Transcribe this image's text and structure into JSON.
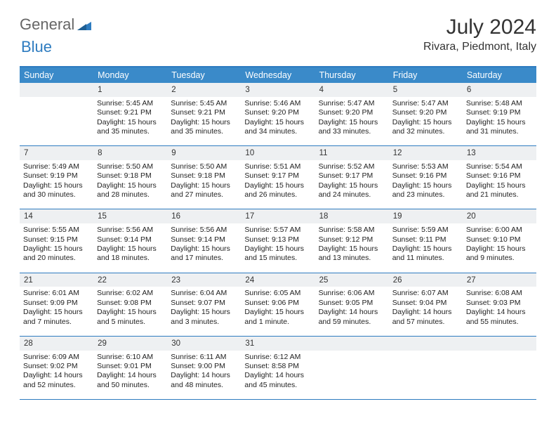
{
  "brand": {
    "part1": "General",
    "part2": "Blue",
    "logo_color": "#2e7cc0",
    "text_gray": "#666666"
  },
  "title": "July 2024",
  "location": "Rivara, Piedmont, Italy",
  "colors": {
    "header_bg": "#3a8ac9",
    "rule": "#2e7cc0",
    "daynum_bg": "#eef0f2"
  },
  "weekday_labels": [
    "Sunday",
    "Monday",
    "Tuesday",
    "Wednesday",
    "Thursday",
    "Friday",
    "Saturday"
  ],
  "weeks": [
    {
      "nums": [
        "",
        "1",
        "2",
        "3",
        "4",
        "5",
        "6"
      ],
      "cells": [
        null,
        {
          "sr": "5:45 AM",
          "ss": "9:21 PM",
          "dl": "15 hours and 35 minutes."
        },
        {
          "sr": "5:45 AM",
          "ss": "9:21 PM",
          "dl": "15 hours and 35 minutes."
        },
        {
          "sr": "5:46 AM",
          "ss": "9:20 PM",
          "dl": "15 hours and 34 minutes."
        },
        {
          "sr": "5:47 AM",
          "ss": "9:20 PM",
          "dl": "15 hours and 33 minutes."
        },
        {
          "sr": "5:47 AM",
          "ss": "9:20 PM",
          "dl": "15 hours and 32 minutes."
        },
        {
          "sr": "5:48 AM",
          "ss": "9:19 PM",
          "dl": "15 hours and 31 minutes."
        }
      ]
    },
    {
      "nums": [
        "7",
        "8",
        "9",
        "10",
        "11",
        "12",
        "13"
      ],
      "cells": [
        {
          "sr": "5:49 AM",
          "ss": "9:19 PM",
          "dl": "15 hours and 30 minutes."
        },
        {
          "sr": "5:50 AM",
          "ss": "9:18 PM",
          "dl": "15 hours and 28 minutes."
        },
        {
          "sr": "5:50 AM",
          "ss": "9:18 PM",
          "dl": "15 hours and 27 minutes."
        },
        {
          "sr": "5:51 AM",
          "ss": "9:17 PM",
          "dl": "15 hours and 26 minutes."
        },
        {
          "sr": "5:52 AM",
          "ss": "9:17 PM",
          "dl": "15 hours and 24 minutes."
        },
        {
          "sr": "5:53 AM",
          "ss": "9:16 PM",
          "dl": "15 hours and 23 minutes."
        },
        {
          "sr": "5:54 AM",
          "ss": "9:16 PM",
          "dl": "15 hours and 21 minutes."
        }
      ]
    },
    {
      "nums": [
        "14",
        "15",
        "16",
        "17",
        "18",
        "19",
        "20"
      ],
      "cells": [
        {
          "sr": "5:55 AM",
          "ss": "9:15 PM",
          "dl": "15 hours and 20 minutes."
        },
        {
          "sr": "5:56 AM",
          "ss": "9:14 PM",
          "dl": "15 hours and 18 minutes."
        },
        {
          "sr": "5:56 AM",
          "ss": "9:14 PM",
          "dl": "15 hours and 17 minutes."
        },
        {
          "sr": "5:57 AM",
          "ss": "9:13 PM",
          "dl": "15 hours and 15 minutes."
        },
        {
          "sr": "5:58 AM",
          "ss": "9:12 PM",
          "dl": "15 hours and 13 minutes."
        },
        {
          "sr": "5:59 AM",
          "ss": "9:11 PM",
          "dl": "15 hours and 11 minutes."
        },
        {
          "sr": "6:00 AM",
          "ss": "9:10 PM",
          "dl": "15 hours and 9 minutes."
        }
      ]
    },
    {
      "nums": [
        "21",
        "22",
        "23",
        "24",
        "25",
        "26",
        "27"
      ],
      "cells": [
        {
          "sr": "6:01 AM",
          "ss": "9:09 PM",
          "dl": "15 hours and 7 minutes."
        },
        {
          "sr": "6:02 AM",
          "ss": "9:08 PM",
          "dl": "15 hours and 5 minutes."
        },
        {
          "sr": "6:04 AM",
          "ss": "9:07 PM",
          "dl": "15 hours and 3 minutes."
        },
        {
          "sr": "6:05 AM",
          "ss": "9:06 PM",
          "dl": "15 hours and 1 minute."
        },
        {
          "sr": "6:06 AM",
          "ss": "9:05 PM",
          "dl": "14 hours and 59 minutes."
        },
        {
          "sr": "6:07 AM",
          "ss": "9:04 PM",
          "dl": "14 hours and 57 minutes."
        },
        {
          "sr": "6:08 AM",
          "ss": "9:03 PM",
          "dl": "14 hours and 55 minutes."
        }
      ]
    },
    {
      "nums": [
        "28",
        "29",
        "30",
        "31",
        "",
        "",
        ""
      ],
      "cells": [
        {
          "sr": "6:09 AM",
          "ss": "9:02 PM",
          "dl": "14 hours and 52 minutes."
        },
        {
          "sr": "6:10 AM",
          "ss": "9:01 PM",
          "dl": "14 hours and 50 minutes."
        },
        {
          "sr": "6:11 AM",
          "ss": "9:00 PM",
          "dl": "14 hours and 48 minutes."
        },
        {
          "sr": "6:12 AM",
          "ss": "8:58 PM",
          "dl": "14 hours and 45 minutes."
        },
        null,
        null,
        null
      ]
    }
  ],
  "labels": {
    "sunrise": "Sunrise:",
    "sunset": "Sunset:",
    "daylight": "Daylight:"
  }
}
